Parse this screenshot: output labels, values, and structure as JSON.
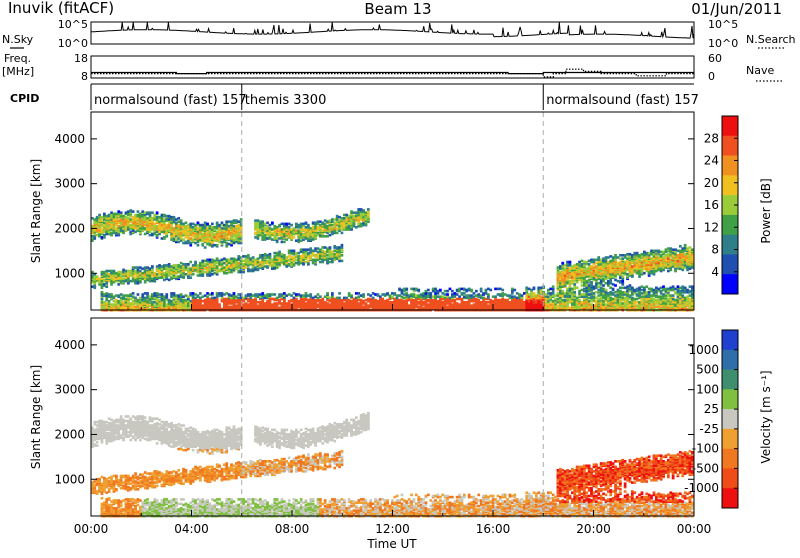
{
  "header": {
    "station": "Inuvik (fitACF)",
    "beam": "Beam 13",
    "date": "01/Jun/2011"
  },
  "colors": {
    "power_scale": [
      "#0000ff",
      "#1f4fb0",
      "#2f7f8a",
      "#3fa045",
      "#9acc3a",
      "#f0c020",
      "#f09020",
      "#f05020",
      "#ee1010"
    ],
    "velocity_scale": [
      "#2040d0",
      "#2f6ea8",
      "#3f8f6f",
      "#7fc040",
      "#c8c8c0",
      "#f0a030",
      "#f07820",
      "#f04c18",
      "#ee1010"
    ]
  },
  "chart_data": [
    {
      "type": "line",
      "panel": "noise",
      "left_label": "N.Sky",
      "right_label": "N.Search",
      "right_legend_line": "dotted",
      "y_left_ticks": [
        "10^5",
        "10^0"
      ],
      "y_right_ticks": [
        "10^5",
        "10^0"
      ]
    },
    {
      "type": "line",
      "panel": "frequency",
      "left_label": "Freq.",
      "left_unit": "[MHz]",
      "right_label": "Nave",
      "right_legend_line": "dotted",
      "y_left_ticks": [
        "18",
        "8"
      ],
      "y_left_range": [
        8,
        18
      ],
      "y_right_ticks": [
        "60",
        "0"
      ],
      "y_right_range": [
        0,
        60
      ],
      "freq_series": [
        {
          "x": 0,
          "y": 10.5
        },
        {
          "x": 3.4,
          "y": 10.5
        },
        {
          "x": 3.4,
          "y": 10.0
        },
        {
          "x": 4.6,
          "y": 10.0
        },
        {
          "x": 4.6,
          "y": 10.5
        },
        {
          "x": 16.6,
          "y": 10.5
        },
        {
          "x": 16.6,
          "y": 10.0
        },
        {
          "x": 18.0,
          "y": 10.0
        },
        {
          "x": 18.0,
          "y": 10.5
        },
        {
          "x": 24.0,
          "y": 10.5
        }
      ],
      "nave_series": [
        {
          "x": 0,
          "y": 12
        },
        {
          "x": 18.0,
          "y": 12
        },
        {
          "x": 18.0,
          "y": 3
        },
        {
          "x": 18.4,
          "y": 3
        },
        {
          "x": 18.4,
          "y": 12
        },
        {
          "x": 18.9,
          "y": 12
        },
        {
          "x": 18.9,
          "y": 24
        },
        {
          "x": 19.6,
          "y": 24
        },
        {
          "x": 19.6,
          "y": 18
        },
        {
          "x": 20.3,
          "y": 18
        },
        {
          "x": 20.3,
          "y": 12
        },
        {
          "x": 21.7,
          "y": 12
        },
        {
          "x": 21.7,
          "y": 6
        },
        {
          "x": 22.9,
          "y": 6
        },
        {
          "x": 22.9,
          "y": 12
        },
        {
          "x": 24.0,
          "y": 12
        }
      ]
    },
    {
      "type": "table",
      "panel": "cpid",
      "label": "CPID",
      "segments": [
        {
          "text": "normalsound (fast) 157",
          "start": 0,
          "end": 6
        },
        {
          "text": "themis 3300",
          "start": 6,
          "end": 18
        },
        {
          "text": "normalsound (fast) 157",
          "start": 18,
          "end": 24
        }
      ]
    },
    {
      "type": "heatmap",
      "panel": "power",
      "ylabel": "Slant Range [km]",
      "colorbar_label": "Power [dB]",
      "colorbar_ticks": [
        "28",
        "24",
        "20",
        "16",
        "12",
        "8",
        "4"
      ],
      "colorbar_range": [
        0,
        32
      ],
      "y_ticks": [
        "4000",
        "3000",
        "2000",
        "1000"
      ],
      "ylim": [
        180,
        4600
      ],
      "xlim": [
        0,
        24
      ],
      "mode_boundaries": [
        6,
        18
      ]
    },
    {
      "type": "heatmap",
      "panel": "velocity",
      "ylabel": "Slant Range [km]",
      "xlabel": "Time UT",
      "colorbar_label": "Velocity [m s⁻¹]",
      "colorbar_ticks": [
        "1000",
        "500",
        "100",
        "25",
        "-25",
        "-100",
        "-500",
        "-1000"
      ],
      "y_ticks": [
        "4000",
        "3000",
        "2000",
        "1000"
      ],
      "x_ticks": [
        "00:00",
        "04:00",
        "08:00",
        "12:00",
        "16:00",
        "20:00",
        "00:00"
      ],
      "ylim": [
        180,
        4600
      ],
      "xlim": [
        0,
        24
      ],
      "mode_boundaries": [
        6,
        18
      ]
    }
  ]
}
